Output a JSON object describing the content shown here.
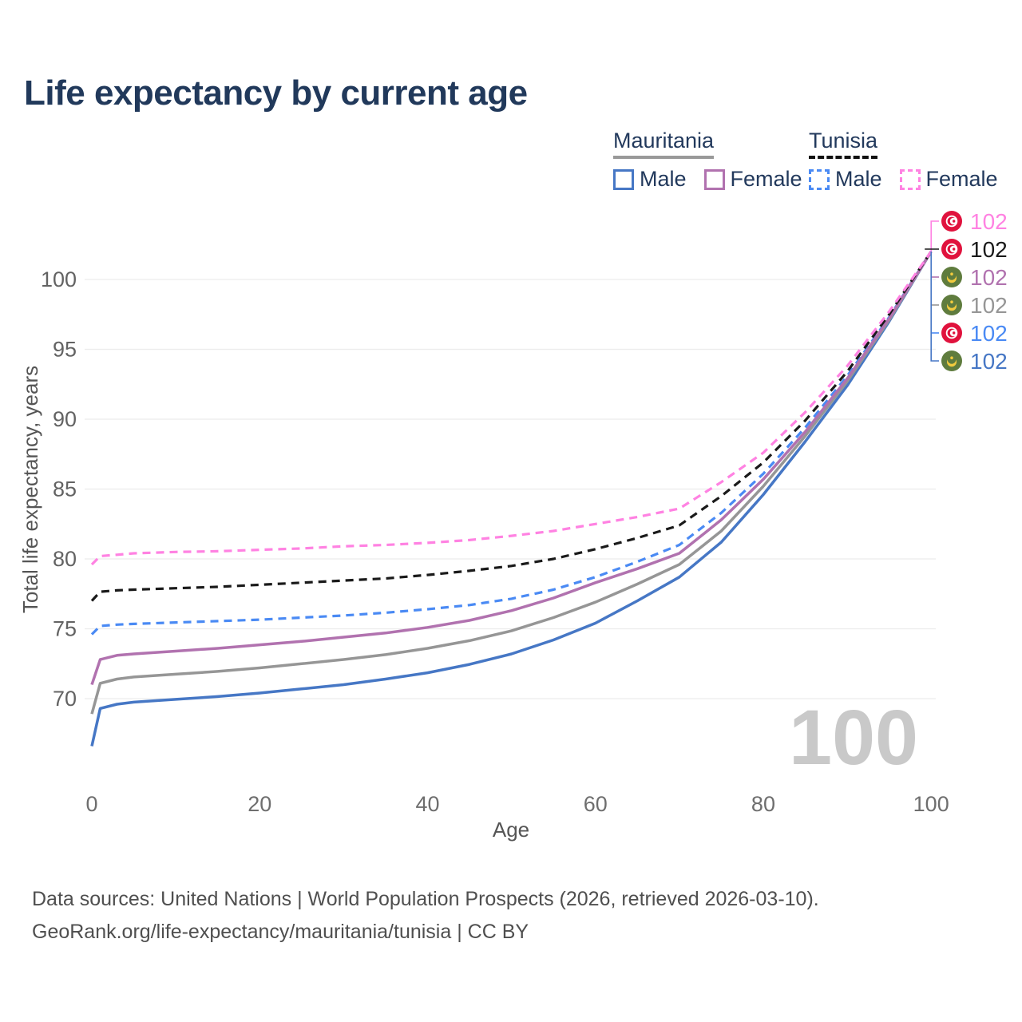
{
  "header": {
    "title": "Life expectancy by current age"
  },
  "legend": {
    "groups": [
      {
        "name": "Mauritania",
        "line_style": "solid",
        "underline_color": "#999999",
        "items": [
          {
            "label": "Male",
            "color": "#4677C5",
            "dashed": false
          },
          {
            "label": "Female",
            "color": "#B172AF",
            "dashed": false
          }
        ]
      },
      {
        "name": "Tunisia",
        "line_style": "dashed",
        "underline_color": "#111111",
        "items": [
          {
            "label": "Male",
            "color": "#4A8AF4",
            "dashed": true
          },
          {
            "label": "Female",
            "color": "#FF82E2",
            "dashed": true
          }
        ]
      }
    ]
  },
  "watermark": {
    "text": "100"
  },
  "footer": {
    "line1": "Data sources: United Nations | World Population Prospects (2026, retrieved 2026-03-10).",
    "line2": "GeoRank.org/life-expectancy/mauritania/tunisia | CC BY"
  },
  "chart_data": {
    "type": "line",
    "title": "Life expectancy by current age",
    "xlabel": "Age",
    "ylabel": "Total life expectancy, years",
    "x_axis": {
      "label": "Age",
      "ticks": [
        0,
        20,
        40,
        60,
        80,
        100
      ],
      "range": [
        0,
        100
      ]
    },
    "y_axis": {
      "label": "Total life expectancy, years",
      "ticks": [
        70,
        75,
        80,
        85,
        90,
        95,
        100
      ],
      "range": [
        66,
        103
      ]
    },
    "grid": true,
    "legend_position": "top-right",
    "x": [
      0,
      1,
      3,
      5,
      10,
      15,
      20,
      25,
      30,
      35,
      40,
      45,
      50,
      55,
      60,
      65,
      70,
      75,
      80,
      85,
      90,
      95,
      100
    ],
    "series": [
      {
        "id": "tunisia-female",
        "name": "Tunisia — Female",
        "country": "Tunisia",
        "sex": "Female",
        "color": "#FF82E2",
        "dashed": true,
        "flag": "tn",
        "end_label": "102",
        "values": [
          79.6,
          80.2,
          80.3,
          80.4,
          80.5,
          80.55,
          80.65,
          80.75,
          80.9,
          81.0,
          81.15,
          81.35,
          81.65,
          82.0,
          82.5,
          83.0,
          83.6,
          85.5,
          87.6,
          90.5,
          93.8,
          97.7,
          102
        ]
      },
      {
        "id": "tunisia-both",
        "name": "Tunisia — Both sexes",
        "country": "Tunisia",
        "sex": "Both",
        "color": "#1A1A1A",
        "dashed": true,
        "flag": "tn",
        "end_label": "102",
        "values": [
          77.0,
          77.65,
          77.75,
          77.8,
          77.9,
          78.0,
          78.15,
          78.3,
          78.45,
          78.6,
          78.85,
          79.15,
          79.5,
          80.0,
          80.7,
          81.5,
          82.4,
          84.5,
          86.9,
          89.9,
          93.4,
          97.5,
          102
        ]
      },
      {
        "id": "mauritania-female",
        "name": "Mauritania — Female",
        "country": "Mauritania",
        "sex": "Female",
        "color": "#B172AF",
        "dashed": false,
        "flag": "mr",
        "end_label": "102",
        "values": [
          71.0,
          72.8,
          73.1,
          73.2,
          73.4,
          73.6,
          73.85,
          74.1,
          74.4,
          74.7,
          75.1,
          75.6,
          76.3,
          77.2,
          78.3,
          79.3,
          80.4,
          82.8,
          85.7,
          89.1,
          92.9,
          97.2,
          102
        ]
      },
      {
        "id": "mauritania-both",
        "name": "Mauritania — Both sexes",
        "country": "Mauritania",
        "sex": "Both",
        "color": "#969696",
        "dashed": false,
        "flag": "mr",
        "end_label": "102",
        "values": [
          68.9,
          71.1,
          71.4,
          71.55,
          71.75,
          71.95,
          72.2,
          72.5,
          72.8,
          73.15,
          73.6,
          74.15,
          74.85,
          75.8,
          76.9,
          78.2,
          79.6,
          82.0,
          85.2,
          88.8,
          92.7,
          97.1,
          102
        ]
      },
      {
        "id": "tunisia-male",
        "name": "Tunisia — Male",
        "country": "Tunisia",
        "sex": "Male",
        "color": "#4A8AF4",
        "dashed": true,
        "flag": "tn",
        "end_label": "102",
        "values": [
          74.6,
          75.2,
          75.3,
          75.35,
          75.45,
          75.55,
          75.65,
          75.8,
          75.95,
          76.15,
          76.4,
          76.7,
          77.15,
          77.8,
          78.7,
          79.8,
          81.0,
          83.3,
          86.1,
          89.4,
          93.1,
          97.3,
          102
        ]
      },
      {
        "id": "mauritania-male",
        "name": "Mauritania — Male",
        "country": "Mauritania",
        "sex": "Male",
        "color": "#4677C5",
        "dashed": false,
        "flag": "mr",
        "end_label": "102",
        "values": [
          66.6,
          69.3,
          69.6,
          69.75,
          69.95,
          70.15,
          70.4,
          70.7,
          71.0,
          71.4,
          71.85,
          72.45,
          73.2,
          74.2,
          75.4,
          77.0,
          78.7,
          81.2,
          84.6,
          88.4,
          92.4,
          97.0,
          102
        ]
      }
    ]
  }
}
